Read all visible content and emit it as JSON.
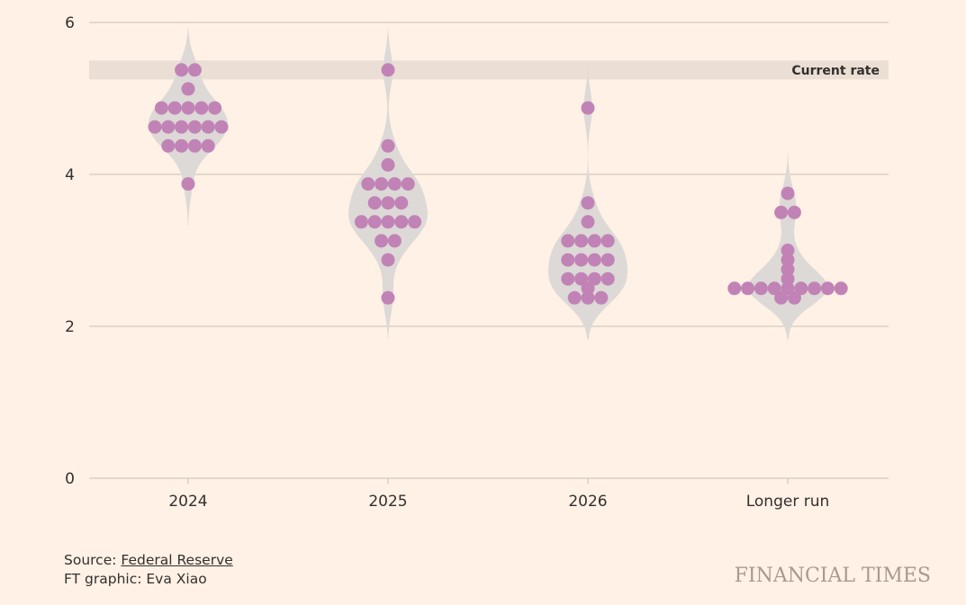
{
  "chart_data": {
    "type": "scatter",
    "subtype": "dot-plot-with-violin",
    "ylim": [
      0,
      6
    ],
    "yticks": [
      0,
      2,
      4,
      6
    ],
    "categories": [
      "2024",
      "2025",
      "2026",
      "Longer run"
    ],
    "current_rate": {
      "label": "Current rate",
      "low": 5.25,
      "high": 5.5
    },
    "series": [
      {
        "name": "2024",
        "values": [
          5.375,
          5.375,
          5.125,
          4.875,
          4.875,
          4.875,
          4.875,
          4.875,
          4.625,
          4.625,
          4.625,
          4.625,
          4.625,
          4.625,
          4.375,
          4.375,
          4.375,
          4.375,
          3.875
        ]
      },
      {
        "name": "2025",
        "values": [
          5.375,
          4.375,
          4.125,
          3.875,
          3.875,
          3.875,
          3.875,
          3.625,
          3.625,
          3.625,
          3.375,
          3.375,
          3.375,
          3.375,
          3.375,
          3.125,
          3.125,
          2.875,
          2.375
        ]
      },
      {
        "name": "2026",
        "values": [
          4.875,
          3.625,
          3.375,
          3.125,
          3.125,
          3.125,
          3.125,
          2.875,
          2.875,
          2.875,
          2.875,
          2.625,
          2.625,
          2.625,
          2.625,
          2.5,
          2.375,
          2.375,
          2.375
        ]
      },
      {
        "name": "Longer run",
        "values": [
          3.75,
          3.5,
          3.5,
          3.0,
          2.875,
          2.75,
          2.625,
          2.5,
          2.5,
          2.5,
          2.5,
          2.5,
          2.5,
          2.5,
          2.5,
          2.5,
          2.375,
          2.375
        ]
      }
    ]
  },
  "colors": {
    "background": "#FFF1E5",
    "dot": "#C183B6",
    "violin": "#DDD9D6",
    "band": "#EBDFD5",
    "grid": "#C9BFB6"
  },
  "footer": {
    "source_prefix": "Source: ",
    "source_link": "Federal Reserve",
    "credit": "FT graphic: Eva Xiao"
  },
  "logo_text": "FINANCIAL TIMES"
}
